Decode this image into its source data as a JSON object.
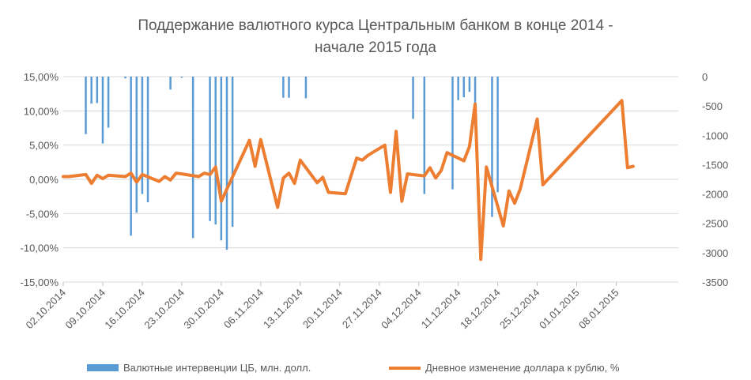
{
  "chart_data": {
    "type": "bar+line",
    "title_line1": "Поддержание валютного курса Центральным банком в конце 2014 -",
    "title_line2": "начале 2015 года",
    "y_left": {
      "ticks": [
        "15,00%",
        "10,00%",
        "5,00%",
        "0,00%",
        "-5,00%",
        "-10,00%",
        "-15,00%"
      ],
      "tick_values": [
        15,
        10,
        5,
        0,
        -5,
        -10,
        -15
      ],
      "range": [
        -15,
        15
      ]
    },
    "y_right": {
      "ticks": [
        "0",
        "-500",
        "-1000",
        "-1500",
        "-2000",
        "-2500",
        "-3000",
        "-3500"
      ],
      "tick_values": [
        0,
        -500,
        -1000,
        -1500,
        -2000,
        -2500,
        -3000,
        -3500
      ],
      "range": [
        -3500,
        0
      ]
    },
    "x_axis": {
      "range_days": [
        0,
        109
      ],
      "ticks": [
        "02.10.2014",
        "09.10.2014",
        "16.10.2014",
        "23.10.2014",
        "30.10.2014",
        "06.11.2014",
        "13.11.2014",
        "20.11.2014",
        "27.11.2014",
        "04.12.2014",
        "11.12.2014",
        "18.12.2014",
        "25.12.2014",
        "01.01.2015",
        "08.01.2015"
      ],
      "tick_days": [
        0,
        7,
        14,
        21,
        28,
        35,
        42,
        49,
        56,
        63,
        70,
        77,
        84,
        91,
        98
      ]
    },
    "series": [
      {
        "name": "Валютные интервенции ЦБ, млн. долл.",
        "axis": "right",
        "type": "bar",
        "color": "#5B9BD5",
        "points": [
          [
            4,
            -980
          ],
          [
            5,
            -460
          ],
          [
            6,
            -450
          ],
          [
            7,
            -1140
          ],
          [
            8,
            -870
          ],
          [
            11,
            -30
          ],
          [
            12,
            -2710
          ],
          [
            13,
            -2320
          ],
          [
            14,
            -2000
          ],
          [
            15,
            -2140
          ],
          [
            19,
            -220
          ],
          [
            21,
            -20
          ],
          [
            23,
            -2750
          ],
          [
            26,
            -2460
          ],
          [
            27,
            -2520
          ],
          [
            28,
            -2790
          ],
          [
            29,
            -2950
          ],
          [
            30,
            -2560
          ],
          [
            39,
            -360
          ],
          [
            40,
            -360
          ],
          [
            43,
            -370
          ],
          [
            62,
            -720
          ],
          [
            64,
            -2000
          ],
          [
            69,
            -1920
          ],
          [
            70,
            -400
          ],
          [
            71,
            -350
          ],
          [
            72,
            -260
          ],
          [
            73,
            -470
          ],
          [
            76,
            -2390
          ],
          [
            77,
            -1970
          ]
        ]
      },
      {
        "name": "Дневное изменение доллара к рублю, %",
        "axis": "left",
        "type": "line",
        "color": "#ED7D31",
        "points": [
          [
            0,
            0.4
          ],
          [
            1,
            0.4
          ],
          [
            4,
            0.7
          ],
          [
            5,
            -0.6
          ],
          [
            6,
            0.6
          ],
          [
            7,
            0.1
          ],
          [
            8,
            0.6
          ],
          [
            11,
            0.4
          ],
          [
            12,
            0.9
          ],
          [
            13,
            -0.4
          ],
          [
            14,
            0.7
          ],
          [
            17,
            -0.3
          ],
          [
            18,
            0.4
          ],
          [
            19,
            -0.1
          ],
          [
            20,
            0.9
          ],
          [
            21,
            0.8
          ],
          [
            24,
            0.4
          ],
          [
            25,
            0.9
          ],
          [
            26,
            0.7
          ],
          [
            27,
            1.8
          ],
          [
            28,
            -3.2
          ],
          [
            33,
            5.7
          ],
          [
            34,
            1.9
          ],
          [
            35,
            5.8
          ],
          [
            38,
            -4.1
          ],
          [
            39,
            0.2
          ],
          [
            40,
            0.9
          ],
          [
            41,
            -0.6
          ],
          [
            42,
            2.8
          ],
          [
            45,
            -0.5
          ],
          [
            46,
            0.3
          ],
          [
            47,
            -1.9
          ],
          [
            50,
            -2.1
          ],
          [
            52,
            3.1
          ],
          [
            53,
            2.8
          ],
          [
            54,
            3.5
          ],
          [
            57,
            5.0
          ],
          [
            58,
            -1.9
          ],
          [
            59,
            7.0
          ],
          [
            60,
            -3.2
          ],
          [
            61,
            0.8
          ],
          [
            64,
            0.5
          ],
          [
            65,
            1.7
          ],
          [
            66,
            0.2
          ],
          [
            67,
            1.3
          ],
          [
            68,
            3.9
          ],
          [
            71,
            2.7
          ],
          [
            72,
            4.8
          ],
          [
            73,
            11.0
          ],
          [
            74,
            -11.7
          ],
          [
            75,
            1.8
          ],
          [
            78,
            -6.8
          ],
          [
            79,
            -1.7
          ],
          [
            80,
            -3.5
          ],
          [
            81,
            -1.4
          ],
          [
            84,
            8.8
          ],
          [
            85,
            -0.8
          ],
          [
            99,
            11.5
          ],
          [
            100,
            1.7
          ],
          [
            101,
            1.9
          ]
        ]
      }
    ],
    "legend_position": "bottom",
    "grid": "horizontal"
  }
}
